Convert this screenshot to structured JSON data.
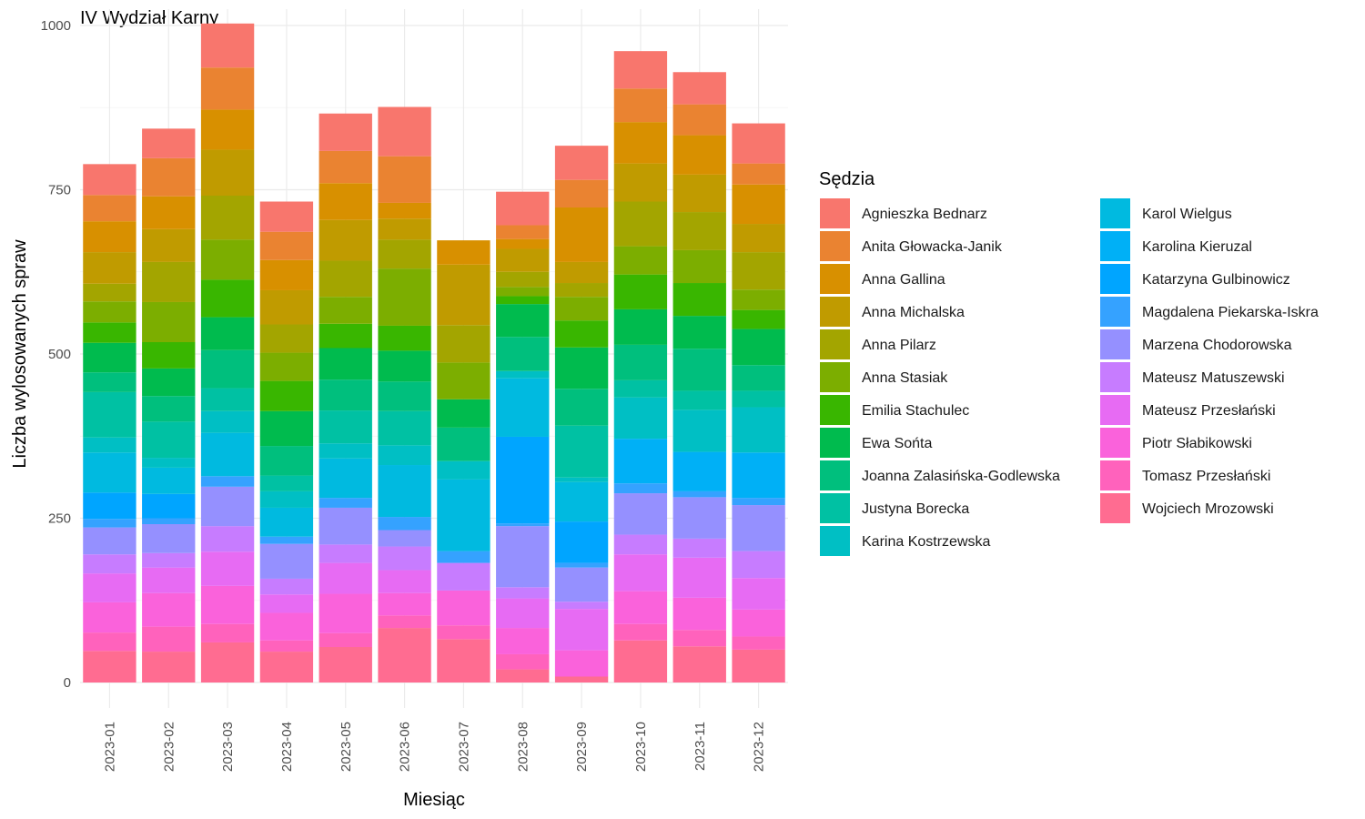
{
  "chart_data": {
    "type": "bar",
    "stacked": true,
    "title": "IV Wydział Karny",
    "xlabel": "Miesiąc",
    "ylabel": "Liczba wylosowanych spraw",
    "ylim": [
      0,
      1000
    ],
    "yticks": [
      0,
      250,
      500,
      750,
      1000
    ],
    "grid": true,
    "legend_title": "Sędzia",
    "legend_position": "right",
    "categories": [
      "2023-01",
      "2023-02",
      "2023-03",
      "2023-04",
      "2023-05",
      "2023-06",
      "2023-07",
      "2023-08",
      "2023-09",
      "2023-10",
      "2023-11",
      "2023-12"
    ],
    "series": [
      {
        "name": "Agnieszka Bednarz",
        "color": "#F8766D",
        "values": [
          47,
          45,
          67,
          46,
          57,
          75,
          0,
          51,
          52,
          57,
          49,
          61
        ]
      },
      {
        "name": "Anita Głowacka-Janik",
        "color": "#EA8331",
        "values": [
          40,
          58,
          64,
          43,
          49,
          71,
          0,
          21,
          42,
          51,
          47,
          32
        ]
      },
      {
        "name": "Anna Gallina",
        "color": "#D89000",
        "values": [
          47,
          50,
          61,
          46,
          56,
          24,
          37,
          15,
          83,
          63,
          60,
          60
        ]
      },
      {
        "name": "Anna Michalska",
        "color": "#C09B00",
        "values": [
          48,
          50,
          70,
          52,
          62,
          32,
          92,
          35,
          32,
          58,
          57,
          43
        ]
      },
      {
        "name": "Anna Pilarz",
        "color": "#A3A500",
        "values": [
          27,
          61,
          67,
          43,
          55,
          44,
          57,
          23,
          21,
          68,
          58,
          57
        ]
      },
      {
        "name": "Anna Stasiak",
        "color": "#7CAE00",
        "values": [
          32,
          61,
          61,
          43,
          41,
          87,
          56,
          14,
          36,
          43,
          50,
          31
        ]
      },
      {
        "name": "Emilia Stachulec",
        "color": "#39B600",
        "values": [
          31,
          40,
          57,
          46,
          37,
          38,
          0,
          12,
          41,
          53,
          50,
          29
        ]
      },
      {
        "name": "Ewa Sońta",
        "color": "#00BB4E",
        "values": [
          45,
          42,
          50,
          53,
          48,
          47,
          43,
          50,
          63,
          54,
          50,
          55
        ]
      },
      {
        "name": "Joanna Zalasińska-Godlewska",
        "color": "#00BF7D",
        "values": [
          30,
          39,
          58,
          45,
          47,
          45,
          51,
          52,
          56,
          54,
          64,
          39
        ]
      },
      {
        "name": "Justyna Borecka",
        "color": "#00C1A3",
        "values": [
          69,
          55,
          35,
          24,
          50,
          52,
          0,
          0,
          79,
          26,
          29,
          25
        ]
      },
      {
        "name": "Karina Kostrzewska",
        "color": "#00BFC4",
        "values": [
          23,
          15,
          33,
          25,
          23,
          30,
          28,
          11,
          7,
          63,
          64,
          69
        ]
      },
      {
        "name": "Karol Wielgus",
        "color": "#00BAE0",
        "values": [
          61,
          40,
          66,
          44,
          60,
          79,
          109,
          89,
          60,
          0,
          0,
          0
        ]
      },
      {
        "name": "Karolina Kieruzal",
        "color": "#00B0F6",
        "values": [
          0,
          0,
          0,
          0,
          0,
          0,
          0,
          0,
          0,
          68,
          60,
          69
        ]
      },
      {
        "name": "Katarzyna Gulbinowicz",
        "color": "#00A5FF",
        "values": [
          40,
          37,
          0,
          0,
          0,
          0,
          0,
          132,
          63,
          0,
          0,
          0
        ]
      },
      {
        "name": "Magdalena Piekarska-Iskra",
        "color": "#35A2FF",
        "values": [
          13,
          9,
          16,
          11,
          15,
          20,
          18,
          4,
          7,
          15,
          9,
          11
        ]
      },
      {
        "name": "Marzena Chodorowska",
        "color": "#9590FF",
        "values": [
          41,
          44,
          60,
          53,
          56,
          25,
          0,
          93,
          52,
          63,
          63,
          70
        ]
      },
      {
        "name": "Mateusz Matuszewski",
        "color": "#C77CFF",
        "values": [
          29,
          22,
          39,
          24,
          28,
          36,
          42,
          17,
          11,
          30,
          29,
          41
        ]
      },
      {
        "name": "Mateusz Przesłański",
        "color": "#E76BF3",
        "values": [
          44,
          39,
          52,
          28,
          47,
          35,
          0,
          45,
          63,
          56,
          61,
          48
        ]
      },
      {
        "name": "Piotr Słabikowski",
        "color": "#FA62DB",
        "values": [
          46,
          51,
          58,
          42,
          60,
          34,
          53,
          40,
          40,
          50,
          49,
          41
        ]
      },
      {
        "name": "Tomasz Przesłański",
        "color": "#FF62BC",
        "values": [
          28,
          38,
          28,
          17,
          21,
          19,
          21,
          23,
          0,
          25,
          25,
          20
        ]
      },
      {
        "name": "Wojciech Mrozowski",
        "color": "#FF6C91",
        "values": [
          48,
          47,
          61,
          47,
          54,
          83,
          66,
          20,
          9,
          64,
          55,
          50
        ]
      }
    ]
  }
}
